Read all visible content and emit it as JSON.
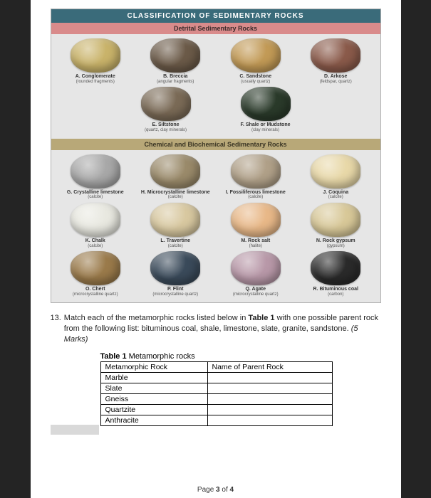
{
  "chart": {
    "title": "CLASSIFICATION OF SEDIMENTARY ROCKS",
    "detrital_header": "Detrital Sedimentary Rocks",
    "chemical_header": "Chemical and Biochemical Sedimentary Rocks",
    "detrital_row1": [
      {
        "name": "A. Conglomerate",
        "sub": "(rounded fragments)",
        "color": "#c9b36a"
      },
      {
        "name": "B. Breccia",
        "sub": "(angular fragments)",
        "color": "#6b5a48"
      },
      {
        "name": "C. Sandstone",
        "sub": "(usually quartz)",
        "color": "#c29a56"
      },
      {
        "name": "D. Arkose",
        "sub": "(feldspar, quartz)",
        "color": "#8a5a4a"
      }
    ],
    "detrital_row2": [
      {
        "name": "E. Siltstone",
        "sub": "(quartz, clay minerals)",
        "color": "#7a6a56"
      },
      {
        "name": "F. Shale or Mudstone",
        "sub": "(clay minerals)",
        "color": "#2a3a2a"
      }
    ],
    "chemical_row1": [
      {
        "name": "G. Crystalline limestone",
        "sub": "(calcite)",
        "color": "#a8a8a8"
      },
      {
        "name": "H. Microcrystalline limestone",
        "sub": "(calcite)",
        "color": "#9a8a6a"
      },
      {
        "name": "I. Fossiliferous limestone",
        "sub": "(calcite)",
        "color": "#b0a088"
      },
      {
        "name": "J. Coquina",
        "sub": "(calcite)",
        "color": "#e8d8a8"
      }
    ],
    "chemical_row2": [
      {
        "name": "K. Chalk",
        "sub": "(calcite)",
        "color": "#e8e8e0"
      },
      {
        "name": "L. Travertine",
        "sub": "(calcite)",
        "color": "#d8c8a0"
      },
      {
        "name": "M. Rock salt",
        "sub": "(halite)",
        "color": "#e8b888"
      },
      {
        "name": "N. Rock gypsum",
        "sub": "(gypsum)",
        "color": "#d8c898"
      }
    ],
    "chemical_row3": [
      {
        "name": "O. Chert",
        "sub": "(microcrystalline quartz)",
        "color": "#9a7a4a"
      },
      {
        "name": "P. Flint",
        "sub": "(microcrystalline quartz)",
        "color": "#3a4a5a"
      },
      {
        "name": "Q. Agate",
        "sub": "(microcrystalline quartz)",
        "color": "#b898a8"
      },
      {
        "name": "R. Bituminous coal",
        "sub": "(carbon)",
        "color": "#2a2a2a"
      }
    ]
  },
  "question": {
    "number": "13.",
    "text_a": "Match each of the metamorphic rocks listed below in ",
    "bold1": "Table 1",
    "text_b": " with one possible parent rock from the following list: bituminous coal, shale, limestone, slate, granite, sandstone. ",
    "marks": "(5 Marks)"
  },
  "table": {
    "caption_bold": "Table 1",
    "caption_rest": " Metamorphic rocks",
    "header_left": "Metamorphic Rock",
    "header_right": "Name of Parent Rock",
    "rows": [
      "Marble",
      "Slate",
      "Gneiss",
      "Quartzite",
      "Anthracite"
    ]
  },
  "footer": {
    "prefix": "Page ",
    "current": "3",
    "mid": " of ",
    "total": "4"
  }
}
